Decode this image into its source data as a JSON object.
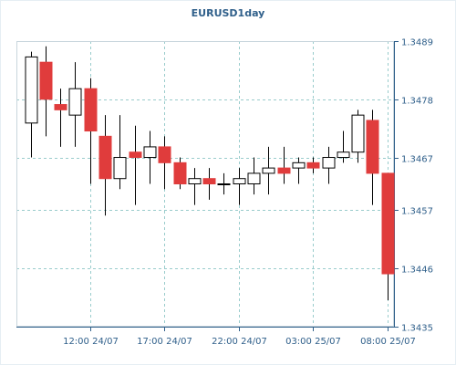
{
  "chart_data": {
    "type": "candlestick",
    "title": "EURUSD1day",
    "ylim": [
      1.3435,
      1.3489
    ],
    "y_ticks": [
      "1.3489",
      "1.3478",
      "1.3467",
      "1.3457",
      "1.3446",
      "1.3435"
    ],
    "x_ticks": [
      "12:00 24/07",
      "17:00 24/07",
      "22:00 24/07",
      "03:00 25/07",
      "08:00 25/07"
    ],
    "x_tick_candle_index": [
      4,
      9,
      14,
      19,
      24
    ],
    "grid": true,
    "colors": {
      "up": "#ffffff",
      "down": "#e03c3c",
      "wick": "#000000",
      "grid": "#99cccc",
      "axis": "#2f5f8a",
      "background": "#ffffff",
      "frame": "#e6eef3"
    },
    "candles": [
      {
        "open": 1.34735,
        "high": 1.3487,
        "low": 1.3467,
        "close": 1.3486
      },
      {
        "open": 1.3485,
        "high": 1.3488,
        "low": 1.3471,
        "close": 1.3478
      },
      {
        "open": 1.3477,
        "high": 1.348,
        "low": 1.3469,
        "close": 1.3476
      },
      {
        "open": 1.3475,
        "high": 1.3485,
        "low": 1.3469,
        "close": 1.348
      },
      {
        "open": 1.348,
        "high": 1.3482,
        "low": 1.3462,
        "close": 1.3472
      },
      {
        "open": 1.3471,
        "high": 1.3475,
        "low": 1.3456,
        "close": 1.3463
      },
      {
        "open": 1.3463,
        "high": 1.3475,
        "low": 1.3461,
        "close": 1.3467
      },
      {
        "open": 1.3468,
        "high": 1.3473,
        "low": 1.3458,
        "close": 1.3467
      },
      {
        "open": 1.3467,
        "high": 1.3472,
        "low": 1.3462,
        "close": 1.3469
      },
      {
        "open": 1.3469,
        "high": 1.3471,
        "low": 1.3461,
        "close": 1.3466
      },
      {
        "open": 1.3466,
        "high": 1.3467,
        "low": 1.3461,
        "close": 1.3462
      },
      {
        "open": 1.3462,
        "high": 1.3465,
        "low": 1.3458,
        "close": 1.3463
      },
      {
        "open": 1.3463,
        "high": 1.3465,
        "low": 1.3459,
        "close": 1.3462
      },
      {
        "open": 1.3462,
        "high": 1.3464,
        "low": 1.346,
        "close": 1.3462
      },
      {
        "open": 1.3462,
        "high": 1.3465,
        "low": 1.3458,
        "close": 1.3463
      },
      {
        "open": 1.3462,
        "high": 1.3467,
        "low": 1.346,
        "close": 1.3464
      },
      {
        "open": 1.3464,
        "high": 1.3469,
        "low": 1.346,
        "close": 1.3465
      },
      {
        "open": 1.3465,
        "high": 1.3469,
        "low": 1.3462,
        "close": 1.3464
      },
      {
        "open": 1.3465,
        "high": 1.3467,
        "low": 1.3462,
        "close": 1.3466
      },
      {
        "open": 1.3466,
        "high": 1.3467,
        "low": 1.3464,
        "close": 1.3465
      },
      {
        "open": 1.3465,
        "high": 1.3469,
        "low": 1.3462,
        "close": 1.3467
      },
      {
        "open": 1.3467,
        "high": 1.3472,
        "low": 1.3466,
        "close": 1.3468
      },
      {
        "open": 1.3468,
        "high": 1.3476,
        "low": 1.3466,
        "close": 1.3475
      },
      {
        "open": 1.3474,
        "high": 1.3476,
        "low": 1.3458,
        "close": 1.3464
      },
      {
        "open": 1.3464,
        "high": 1.3464,
        "low": 1.344,
        "close": 1.3445
      }
    ]
  }
}
